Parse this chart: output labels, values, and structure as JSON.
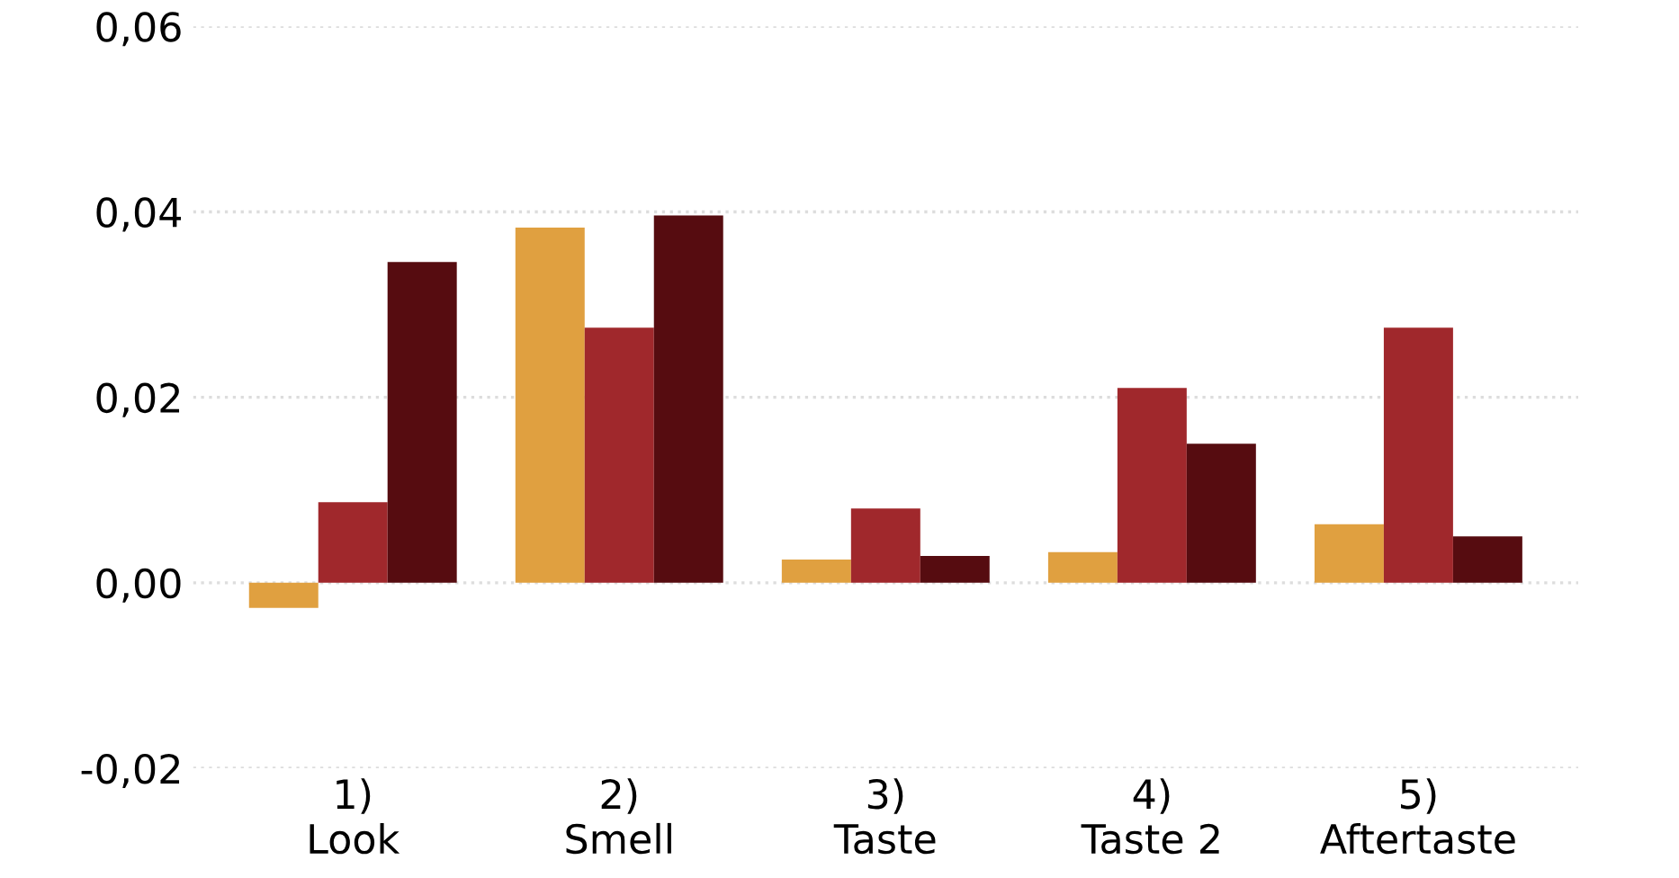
{
  "chart_data": {
    "type": "bar",
    "categories": [
      "1)\nLook",
      "2)\nSmell",
      "3)\nTaste",
      "4)\nTaste 2",
      "5)\nAftertaste"
    ],
    "series": [
      {
        "color": "#e0a040",
        "values": [
          -0.0027,
          0.0383,
          0.0025,
          0.0033,
          0.0063
        ]
      },
      {
        "color": "#a0282c",
        "values": [
          0.0087,
          0.0275,
          0.008,
          0.021,
          0.0275
        ]
      },
      {
        "color": "#560c10",
        "values": [
          0.0346,
          0.0396,
          0.0029,
          0.015,
          0.005
        ]
      }
    ],
    "ylim": [
      -0.02,
      0.06
    ],
    "yticks": [
      {
        "value": -0.02,
        "label": "-0,02"
      },
      {
        "value": 0,
        "label": "0,00"
      },
      {
        "value": 0.02,
        "label": "0,02"
      },
      {
        "value": 0.04,
        "label": "0,04"
      },
      {
        "value": 0.06,
        "label": "0,06"
      }
    ],
    "grid": "y"
  }
}
